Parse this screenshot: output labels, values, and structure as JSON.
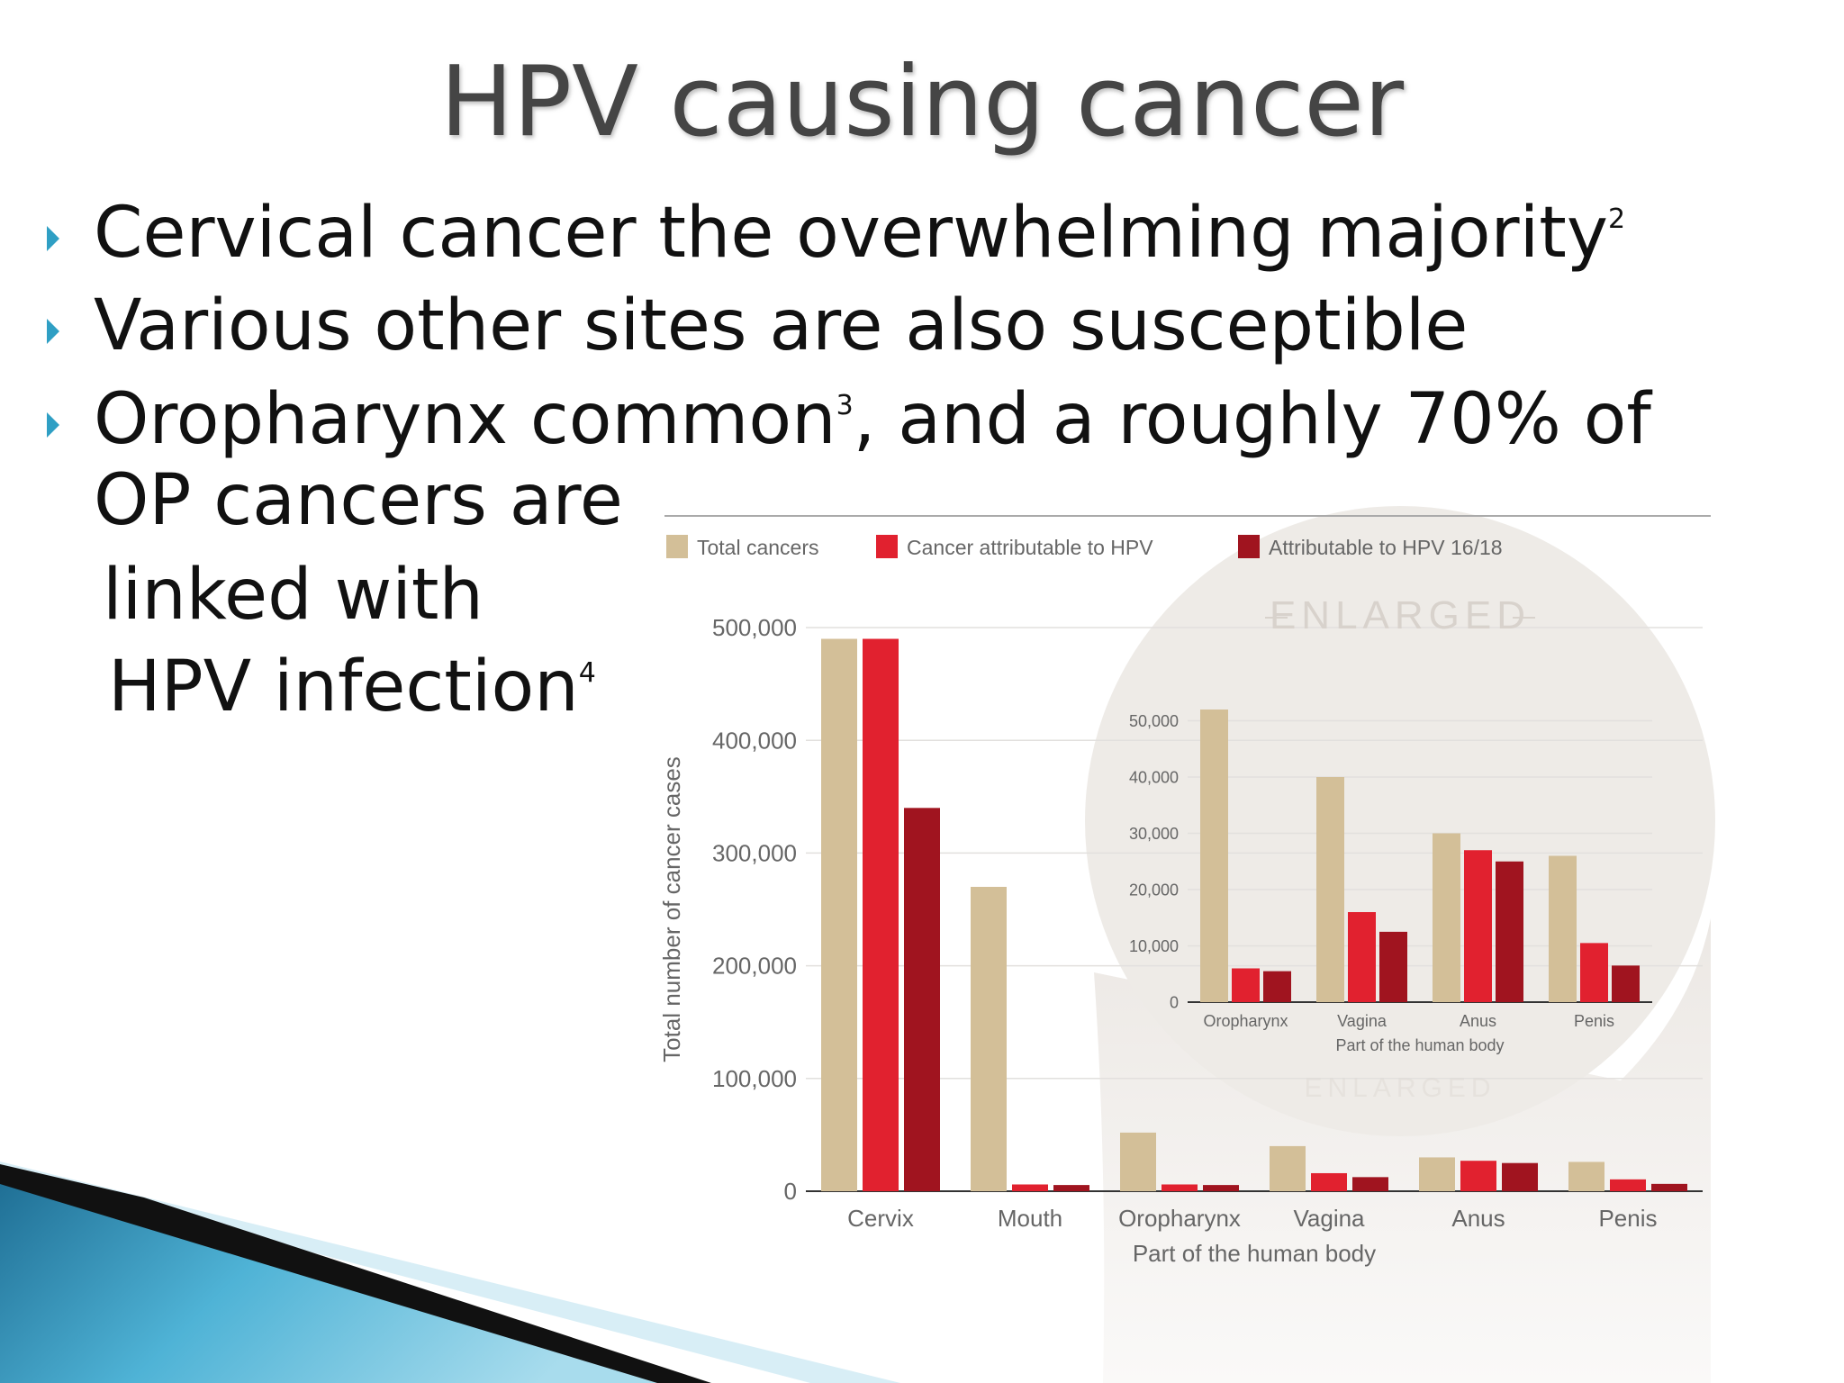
{
  "title": "HPV causing cancer",
  "bullets": [
    [
      [
        {
          "text": "Cervical cancer the overwhelming majority"
        },
        {
          "sup": "2"
        }
      ]
    ],
    [
      [
        {
          "text": "Various other sites are also susceptible"
        }
      ]
    ],
    [
      [
        {
          "text": "Oropharynx common"
        },
        {
          "sup": "3"
        },
        {
          "text": ", and a roughly 70% of"
        }
      ],
      [
        {
          "text": "OP cancers are"
        }
      ],
      [
        {
          "text": "linked with"
        }
      ],
      [
        {
          "text": "HPV infection"
        },
        {
          "sup": "4"
        }
      ]
    ]
  ],
  "chart_data": [
    {
      "type": "bar",
      "categories": [
        "Cervix",
        "Mouth",
        "Oropharynx",
        "Vagina",
        "Anus",
        "Penis"
      ],
      "series": [
        {
          "name": "Total cancers",
          "color": "#d3bf98",
          "values": [
            490000,
            270000,
            52000,
            40000,
            30000,
            26000
          ]
        },
        {
          "name": "Cancer attributable to HPV",
          "color": "#e1212f",
          "values": [
            490000,
            6000,
            6000,
            16000,
            27000,
            10500
          ]
        },
        {
          "name": "Attributable to HPV 16/18",
          "color": "#a0141f",
          "values": [
            340000,
            5500,
            5500,
            12500,
            25000,
            6500
          ]
        }
      ],
      "ylabel": "Total number of cancer cases",
      "xlabel": "Part of the human body",
      "ylim": [
        0,
        500000
      ],
      "yticks": [
        0,
        {
          "value": 100000,
          "label": "100,000"
        },
        {
          "value": 200000,
          "label": "200,000"
        },
        {
          "value": 300000,
          "label": "300,000"
        },
        {
          "value": 400000,
          "label": "400,000"
        },
        {
          "value": 500000,
          "label": "500,000"
        }
      ],
      "grid": true,
      "legend": "top"
    },
    {
      "type": "bar",
      "categories": [
        "Oropharynx",
        "Vagina",
        "Anus",
        "Penis"
      ],
      "series": [
        {
          "color": "#d3bf98",
          "values": [
            52000,
            40000,
            30000,
            26000
          ]
        },
        {
          "color": "#e1212f",
          "values": [
            6000,
            16000,
            27000,
            10500
          ]
        },
        {
          "color": "#a0141f",
          "values": [
            5500,
            12500,
            25000,
            6500
          ]
        }
      ],
      "xlabel": "Part of the human body",
      "ylim": [
        0,
        60000
      ],
      "yticks": [
        0,
        {
          "value": 10000,
          "label": "10,000"
        },
        {
          "value": 20000,
          "label": "20,000"
        },
        {
          "value": 30000,
          "label": "30,000"
        },
        {
          "value": 40000,
          "label": "40,000"
        },
        {
          "value": 50000,
          "label": "50,000"
        }
      ],
      "grid": true,
      "annotations": [
        "ENLARGED",
        "ENLARGED"
      ]
    }
  ]
}
